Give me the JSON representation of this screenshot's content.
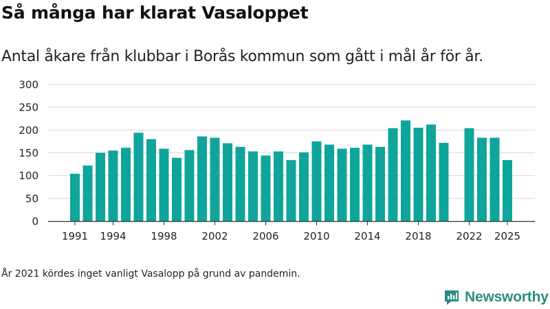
{
  "header": {
    "title": "Så många har klarat Vasaloppet",
    "subtitle": "Antal åkare från klubbar i Borås kommun som gått i mål år för år."
  },
  "footnote": "År 2021 kördes inget vanligt Vasalopp på grund av pandemin.",
  "brand": {
    "name": "Newsworthy",
    "color": "#2a8c80"
  },
  "colors": {
    "bar": "#10a59a",
    "grid": "#d9d9d9",
    "axis": "#333333"
  },
  "chart_data": {
    "type": "bar",
    "title": "Så många har klarat Vasaloppet",
    "subtitle": "Antal åkare från klubbar i Borås kommun som gått i mål år för år.",
    "xlabel": "",
    "ylabel": "",
    "ylim": [
      0,
      300
    ],
    "yticks": [
      0,
      50,
      100,
      150,
      200,
      250,
      300
    ],
    "xticks": [
      1991,
      1994,
      1998,
      2002,
      2006,
      2010,
      2014,
      2018,
      2022,
      2025
    ],
    "xlim": [
      1990,
      2026
    ],
    "grid": true,
    "categories": [
      1991,
      1992,
      1993,
      1994,
      1995,
      1996,
      1997,
      1998,
      1999,
      2000,
      2001,
      2002,
      2003,
      2004,
      2005,
      2006,
      2007,
      2008,
      2009,
      2010,
      2011,
      2012,
      2013,
      2014,
      2015,
      2016,
      2017,
      2018,
      2019,
      2020,
      2021,
      2022,
      2023,
      2024,
      2025
    ],
    "values": [
      104,
      122,
      150,
      155,
      161,
      194,
      180,
      159,
      139,
      156,
      186,
      183,
      171,
      163,
      153,
      144,
      153,
      134,
      151,
      175,
      168,
      159,
      161,
      168,
      163,
      204,
      221,
      205,
      212,
      172,
      null,
      204,
      183,
      183,
      134
    ]
  }
}
